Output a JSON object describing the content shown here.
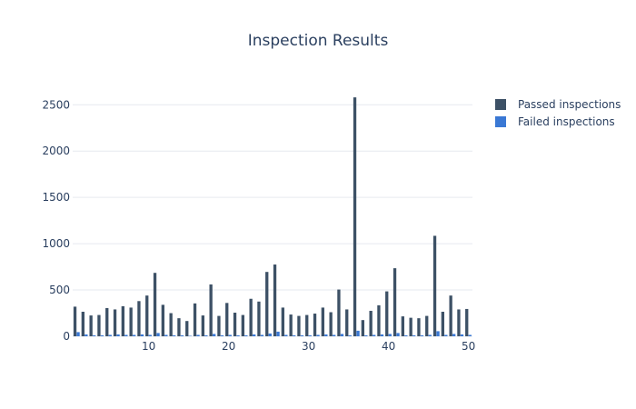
{
  "chart_data": {
    "type": "bar",
    "title": "Inspection Results",
    "xlabel": "",
    "ylabel": "",
    "xlim": [
      0.5,
      50.5
    ],
    "ylim": [
      0,
      2650
    ],
    "xticks": [
      10,
      20,
      30,
      40,
      50
    ],
    "yticks": [
      0,
      500,
      1000,
      1500,
      2000,
      2500
    ],
    "grid": true,
    "legend_position": "top-right",
    "x": [
      1,
      2,
      3,
      4,
      5,
      6,
      7,
      8,
      9,
      10,
      11,
      12,
      13,
      14,
      15,
      16,
      17,
      18,
      19,
      20,
      21,
      22,
      23,
      24,
      25,
      26,
      27,
      28,
      29,
      30,
      31,
      32,
      33,
      34,
      35,
      36,
      37,
      38,
      39,
      40,
      41,
      42,
      43,
      44,
      45,
      46,
      47,
      48,
      49,
      50
    ],
    "series": [
      {
        "name": "Passed inspections",
        "color": "#3d5166",
        "values": [
          320,
          265,
          225,
          230,
          305,
          290,
          325,
          310,
          380,
          440,
          685,
          340,
          250,
          195,
          165,
          355,
          225,
          560,
          220,
          360,
          255,
          230,
          405,
          375,
          695,
          775,
          310,
          235,
          220,
          230,
          245,
          310,
          260,
          505,
          290,
          2580,
          175,
          275,
          335,
          485,
          735,
          215,
          200,
          195,
          220,
          1085,
          265,
          440,
          290,
          295
        ]
      },
      {
        "name": "Failed inspections",
        "color": "#3a78d4",
        "values": [
          45,
          20,
          10,
          10,
          15,
          20,
          15,
          15,
          20,
          15,
          35,
          15,
          10,
          10,
          5,
          15,
          10,
          25,
          10,
          15,
          10,
          10,
          20,
          15,
          30,
          50,
          15,
          10,
          10,
          10,
          15,
          20,
          15,
          25,
          10,
          60,
          10,
          15,
          20,
          25,
          35,
          10,
          10,
          10,
          15,
          55,
          15,
          25,
          20,
          15
        ]
      }
    ]
  }
}
